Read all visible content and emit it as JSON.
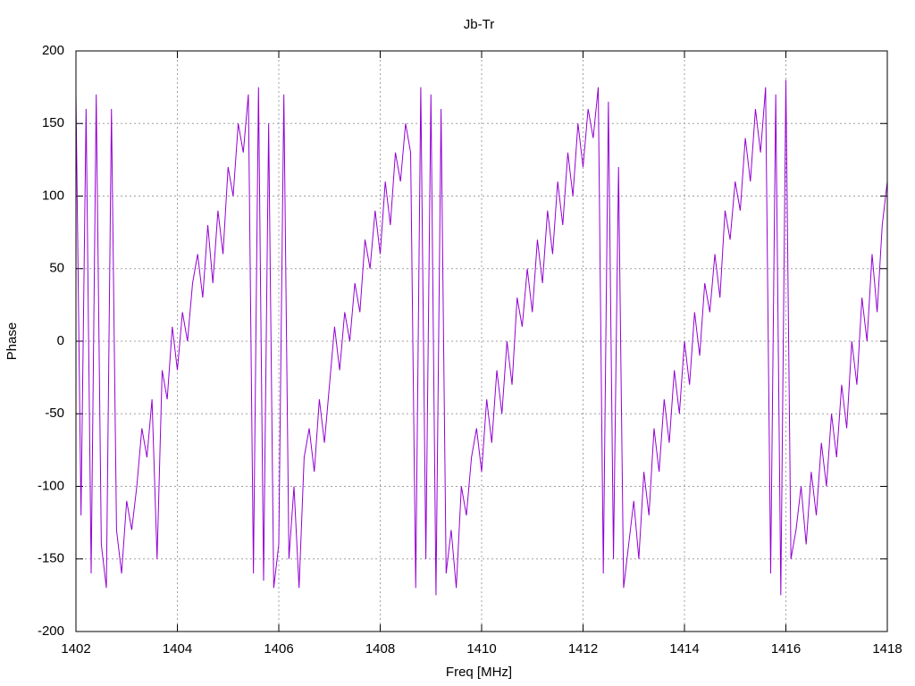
{
  "chart_data": {
    "type": "line",
    "title": "Jb-Tr",
    "x_label": "Freq [MHz]",
    "y_label": "Phase",
    "color": "#9400d3",
    "grid": true,
    "xlim": [
      1402,
      1418
    ],
    "xticks": [
      1402,
      1404,
      1406,
      1408,
      1410,
      1412,
      1414,
      1416,
      1418
    ],
    "ylim": [
      -200,
      200
    ],
    "yticks": [
      -200,
      -150,
      -100,
      -50,
      0,
      50,
      100,
      150,
      200
    ],
    "x": [
      1402.0,
      1402.1,
      1402.2,
      1402.3,
      1402.4,
      1402.5,
      1402.6,
      1402.7,
      1402.8,
      1402.9,
      1403.0,
      1403.1,
      1403.2,
      1403.3,
      1403.4,
      1403.5,
      1403.6,
      1403.7,
      1403.8,
      1403.9,
      1404.0,
      1404.1,
      1404.2,
      1404.3,
      1404.4,
      1404.5,
      1404.6,
      1404.7,
      1404.8,
      1404.9,
      1405.0,
      1405.1,
      1405.2,
      1405.3,
      1405.4,
      1405.5,
      1405.6,
      1405.7,
      1405.8,
      1405.9,
      1406.0,
      1406.1,
      1406.2,
      1406.3,
      1406.4,
      1406.5,
      1406.6,
      1406.7,
      1406.8,
      1406.9,
      1407.0,
      1407.1,
      1407.2,
      1407.3,
      1407.4,
      1407.5,
      1407.6,
      1407.7,
      1407.8,
      1407.9,
      1408.0,
      1408.1,
      1408.2,
      1408.3,
      1408.4,
      1408.5,
      1408.6,
      1408.7,
      1408.8,
      1408.9,
      1409.0,
      1409.1,
      1409.2,
      1409.3,
      1409.4,
      1409.5,
      1409.6,
      1409.7,
      1409.8,
      1409.9,
      1410.0,
      1410.1,
      1410.2,
      1410.3,
      1410.4,
      1410.5,
      1410.6,
      1410.7,
      1410.8,
      1410.9,
      1411.0,
      1411.1,
      1411.2,
      1411.3,
      1411.4,
      1411.5,
      1411.6,
      1411.7,
      1411.8,
      1411.9,
      1412.0,
      1412.1,
      1412.2,
      1412.3,
      1412.4,
      1412.5,
      1412.6,
      1412.7,
      1412.8,
      1412.9,
      1413.0,
      1413.1,
      1413.2,
      1413.3,
      1413.4,
      1413.5,
      1413.6,
      1413.7,
      1413.8,
      1413.9,
      1414.0,
      1414.1,
      1414.2,
      1414.3,
      1414.4,
      1414.5,
      1414.6,
      1414.7,
      1414.8,
      1414.9,
      1415.0,
      1415.1,
      1415.2,
      1415.3,
      1415.4,
      1415.5,
      1415.6,
      1415.7,
      1415.8,
      1415.9,
      1416.0,
      1416.1,
      1416.2,
      1416.3,
      1416.4,
      1416.5,
      1416.6,
      1416.7,
      1416.8,
      1416.9,
      1417.0,
      1417.1,
      1417.2,
      1417.3,
      1417.4,
      1417.5,
      1417.6,
      1417.7,
      1417.8,
      1417.9,
      1418.0
    ],
    "values": [
      170,
      -120,
      160,
      -160,
      170,
      -140,
      -170,
      160,
      -130,
      -160,
      -110,
      -130,
      -100,
      -60,
      -80,
      -40,
      -150,
      -20,
      -40,
      10,
      -20,
      20,
      0,
      40,
      60,
      30,
      80,
      40,
      90,
      60,
      120,
      100,
      150,
      130,
      170,
      -160,
      175,
      -165,
      150,
      -170,
      -140,
      170,
      -150,
      -100,
      -170,
      -80,
      -60,
      -90,
      -40,
      -70,
      -30,
      10,
      -20,
      20,
      0,
      40,
      20,
      70,
      50,
      90,
      60,
      110,
      80,
      130,
      110,
      150,
      130,
      -170,
      175,
      -150,
      170,
      -175,
      160,
      -160,
      -130,
      -170,
      -100,
      -120,
      -80,
      -60,
      -90,
      -40,
      -70,
      -20,
      -50,
      0,
      -30,
      30,
      10,
      50,
      20,
      70,
      40,
      90,
      60,
      110,
      80,
      130,
      100,
      150,
      120,
      160,
      140,
      175,
      -160,
      165,
      -150,
      120,
      -170,
      -140,
      -110,
      -150,
      -90,
      -120,
      -60,
      -90,
      -40,
      -70,
      -20,
      -50,
      0,
      -30,
      20,
      -10,
      40,
      20,
      60,
      30,
      90,
      70,
      110,
      90,
      140,
      110,
      160,
      130,
      175,
      -160,
      170,
      -175,
      180,
      -150,
      -130,
      -100,
      -140,
      -90,
      -120,
      -70,
      -100,
      -50,
      -80,
      -30,
      -60,
      0,
      -30,
      30,
      0,
      60,
      20,
      80,
      110
    ]
  }
}
